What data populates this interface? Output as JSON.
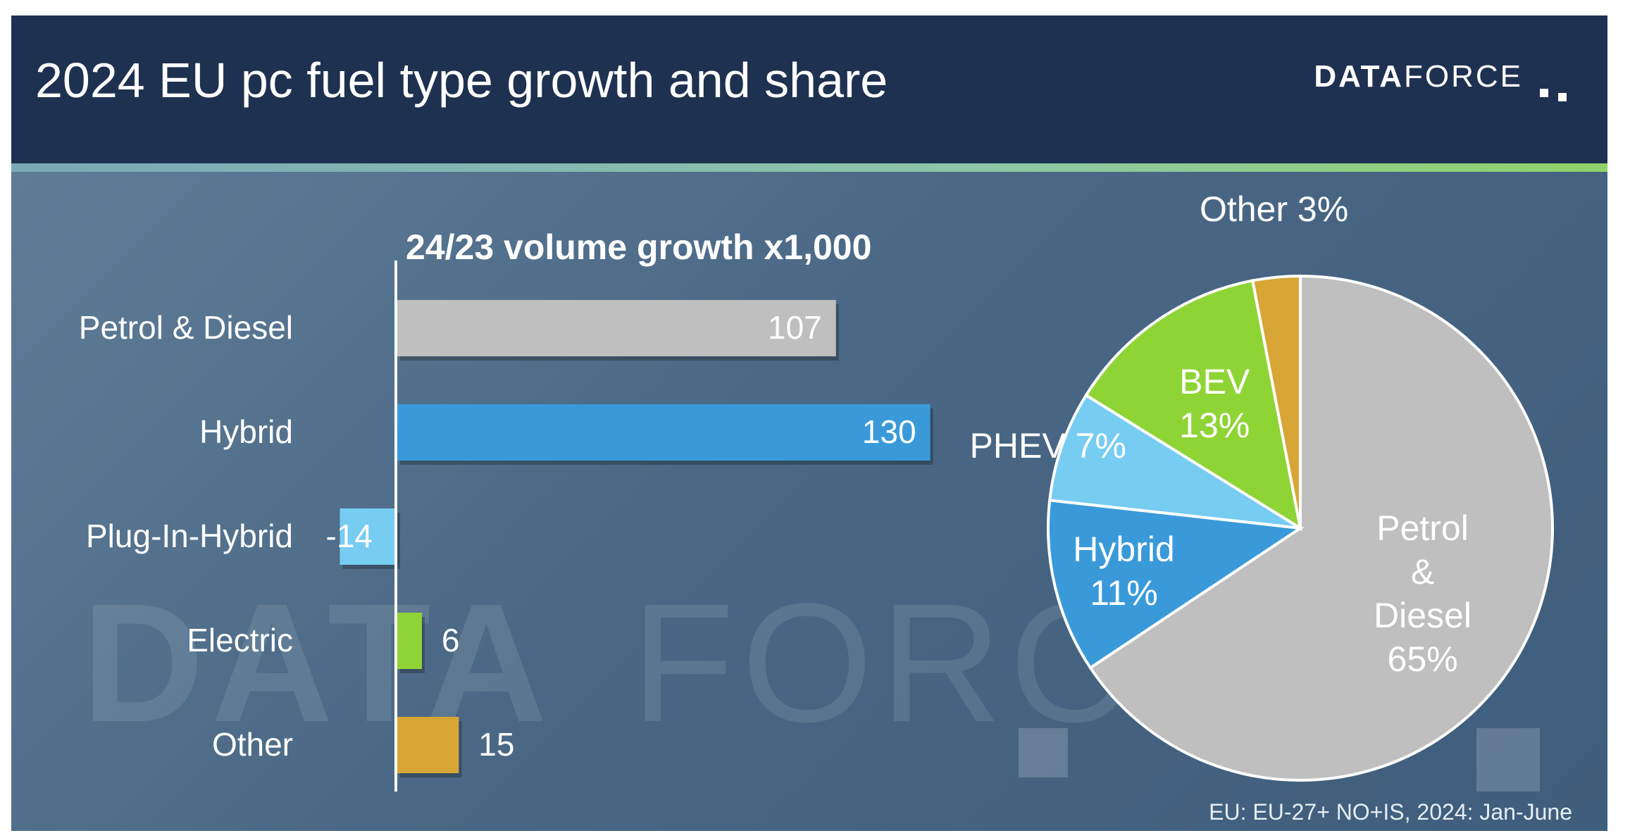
{
  "header": {
    "title": "2024 EU pc fuel type growth and share",
    "logo_bold": "DATA",
    "logo_light": "FORCE"
  },
  "footnote": "EU: EU-27+ NO+IS, 2024: Jan-June",
  "watermark_text": "DATAFORCE",
  "colors": {
    "header_bg": "#1f3150",
    "petrol_diesel": "#bfbfbf",
    "hybrid": "#3a9ad9",
    "phev": "#77ccf2",
    "bev": "#8fd435",
    "other": "#d8a636"
  },
  "chart_data": [
    {
      "type": "bar",
      "orientation": "horizontal",
      "title": "24/23 volume growth x1,000",
      "categories": [
        "Petrol & Diesel",
        "Hybrid",
        "Plug-In-Hybrid",
        "Electric",
        "Other"
      ],
      "values": [
        107,
        130,
        -14,
        6,
        15
      ],
      "value_labels": [
        "107",
        "130",
        "-14",
        "6",
        "15"
      ],
      "colors": [
        "#bfbfbf",
        "#3a9ad9",
        "#77ccf2",
        "#8fd435",
        "#d8a636"
      ],
      "xlim": [
        -15,
        140
      ],
      "grid": false
    },
    {
      "type": "pie",
      "slices": [
        {
          "name": "Petrol & Diesel",
          "value": 65,
          "label_lines": [
            "Petrol",
            "&",
            "Diesel",
            "65%"
          ],
          "color": "#bfbfbf"
        },
        {
          "name": "Hybrid",
          "value": 11,
          "label_lines": [
            "Hybrid",
            "11%"
          ],
          "color": "#3a9ad9"
        },
        {
          "name": "PHEV",
          "value": 7,
          "label_lines": [
            "PHEV 7%"
          ],
          "color": "#77ccf2"
        },
        {
          "name": "BEV",
          "value": 13,
          "label_lines": [
            "BEV",
            "13%"
          ],
          "color": "#8fd435"
        },
        {
          "name": "Other",
          "value": 3,
          "label_lines": [
            "Other 3%"
          ],
          "color": "#d8a636"
        }
      ]
    }
  ]
}
